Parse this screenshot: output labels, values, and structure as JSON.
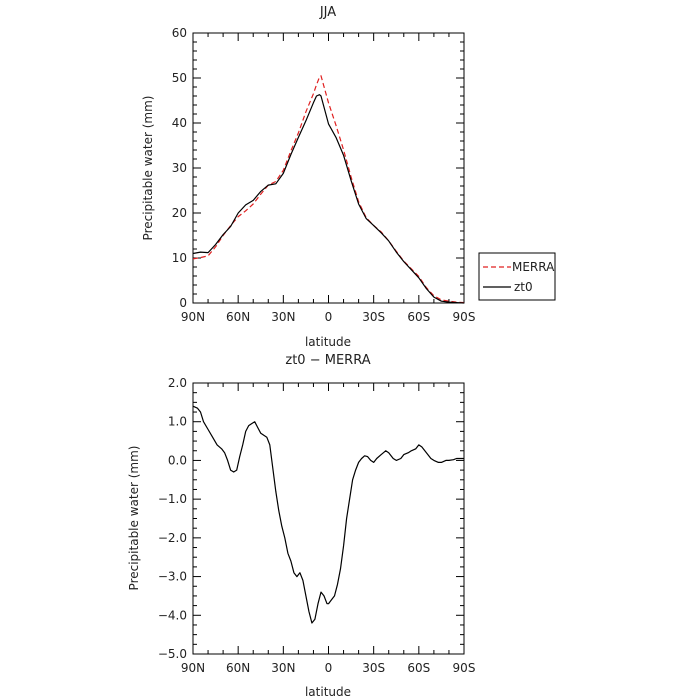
{
  "chart_data": [
    {
      "type": "line",
      "title": "JJA",
      "xlabel": "latitude",
      "ylabel": "Precipitable water (mm)",
      "xlim": [
        90,
        -90
      ],
      "ylim": [
        0,
        60
      ],
      "xticks": [
        90,
        60,
        30,
        0,
        -30,
        -60,
        -90
      ],
      "xtick_labels": [
        "90N",
        "60N",
        "30N",
        "0",
        "30S",
        "60S",
        "90S"
      ],
      "yticks": [
        0,
        10,
        20,
        30,
        40,
        50,
        60
      ],
      "ytick_labels": [
        "0",
        "10",
        "20",
        "30",
        "40",
        "50",
        "60"
      ],
      "legend_position": "right",
      "series": [
        {
          "name": "MERRA",
          "color": "#e02020",
          "dash": "dashed",
          "x": [
            90,
            85,
            80,
            75,
            70,
            65,
            60,
            55,
            50,
            45,
            40,
            35,
            30,
            25,
            20,
            15,
            10,
            8,
            6,
            5,
            0,
            -5,
            -10,
            -15,
            -20,
            -25,
            -30,
            -35,
            -40,
            -45,
            -50,
            -55,
            -60,
            -65,
            -70,
            -75,
            -80,
            -85,
            -90
          ],
          "y": [
            9.8,
            10.1,
            10.5,
            12.5,
            15.0,
            17.2,
            19.2,
            20.5,
            22.0,
            24.2,
            26.2,
            27.0,
            29.5,
            33.8,
            37.8,
            42.5,
            46.5,
            48.5,
            50.2,
            50.5,
            44.5,
            39.5,
            34.0,
            28.0,
            22.5,
            19.0,
            17.2,
            15.8,
            13.8,
            11.5,
            9.3,
            7.6,
            5.9,
            3.4,
            1.6,
            0.7,
            0.4,
            0.2,
            0.1
          ]
        },
        {
          "name": "zt0",
          "color": "#000000",
          "dash": "solid",
          "x": [
            90,
            85,
            80,
            75,
            70,
            65,
            60,
            55,
            50,
            45,
            40,
            35,
            30,
            25,
            20,
            15,
            10,
            8,
            6,
            5,
            0,
            -5,
            -10,
            -15,
            -20,
            -25,
            -30,
            -35,
            -40,
            -45,
            -50,
            -55,
            -60,
            -65,
            -70,
            -75,
            -80,
            -85,
            -90
          ],
          "y": [
            11.0,
            11.3,
            11.2,
            13.0,
            15.2,
            17.0,
            20.0,
            21.8,
            22.8,
            24.8,
            26.2,
            26.5,
            28.8,
            33.0,
            36.8,
            40.5,
            44.5,
            46.0,
            46.3,
            46.0,
            39.8,
            36.8,
            32.8,
            27.2,
            22.0,
            18.8,
            17.2,
            15.6,
            13.8,
            11.3,
            9.2,
            7.4,
            5.6,
            3.2,
            1.3,
            0.4,
            0.2,
            0.1,
            0.0
          ]
        }
      ]
    },
    {
      "type": "line",
      "title": "zt0 − MERRA",
      "xlabel": "latitude",
      "ylabel": "Precipitable water (mm)",
      "xlim": [
        90,
        -90
      ],
      "ylim": [
        -5,
        2
      ],
      "xticks": [
        90,
        60,
        30,
        0,
        -30,
        -60,
        -90
      ],
      "xtick_labels": [
        "90N",
        "60N",
        "30N",
        "0",
        "30S",
        "60S",
        "90S"
      ],
      "yticks": [
        2,
        1,
        0,
        -1,
        -2,
        -3,
        -4,
        -5
      ],
      "ytick_labels": [
        "2.0",
        "1.0",
        "0.0",
        "−1.0",
        "−2.0",
        "−3.0",
        "−4.0",
        "−5.0"
      ],
      "series": [
        {
          "name": "",
          "color": "#000000",
          "dash": "solid",
          "x": [
            90,
            87,
            85,
            83,
            80,
            77,
            74,
            71,
            69,
            67,
            65,
            63,
            61,
            59,
            57,
            55,
            53,
            51,
            49,
            47,
            45,
            43,
            41,
            39,
            37,
            35,
            33,
            31,
            29,
            27,
            25,
            23,
            21,
            19,
            17,
            15,
            13,
            11,
            9,
            7,
            5,
            3,
            1,
            0,
            -2,
            -4,
            -6,
            -8,
            -10,
            -12,
            -14,
            -16,
            -18,
            -20,
            -22,
            -24,
            -26,
            -28,
            -30,
            -32,
            -35,
            -38,
            -40,
            -43,
            -45,
            -48,
            -50,
            -53,
            -55,
            -58,
            -60,
            -62,
            -65,
            -68,
            -70,
            -73,
            -75,
            -78,
            -80,
            -83,
            -85,
            -87,
            -90
          ],
          "y": [
            1.4,
            1.35,
            1.25,
            1.0,
            0.8,
            0.6,
            0.4,
            0.3,
            0.2,
            0.0,
            -0.25,
            -0.3,
            -0.25,
            0.1,
            0.4,
            0.75,
            0.9,
            0.95,
            1.0,
            0.85,
            0.7,
            0.65,
            0.6,
            0.4,
            -0.2,
            -0.8,
            -1.3,
            -1.7,
            -2.0,
            -2.4,
            -2.6,
            -2.9,
            -3.0,
            -2.9,
            -3.1,
            -3.5,
            -3.9,
            -4.2,
            -4.1,
            -3.7,
            -3.4,
            -3.5,
            -3.7,
            -3.7,
            -3.6,
            -3.5,
            -3.2,
            -2.8,
            -2.2,
            -1.5,
            -1.0,
            -0.5,
            -0.25,
            -0.05,
            0.05,
            0.12,
            0.1,
            0.0,
            -0.05,
            0.05,
            0.15,
            0.25,
            0.2,
            0.05,
            0.0,
            0.05,
            0.15,
            0.2,
            0.25,
            0.3,
            0.4,
            0.35,
            0.2,
            0.05,
            0.0,
            -0.05,
            -0.05,
            0.0,
            0.0,
            0.02,
            0.05,
            0.05,
            0.05
          ]
        }
      ]
    }
  ],
  "legend": {
    "items": [
      {
        "label": "MERRA",
        "color": "#e02020",
        "dash": "dashed"
      },
      {
        "label": "zt0",
        "color": "#000000",
        "dash": "solid"
      }
    ]
  }
}
